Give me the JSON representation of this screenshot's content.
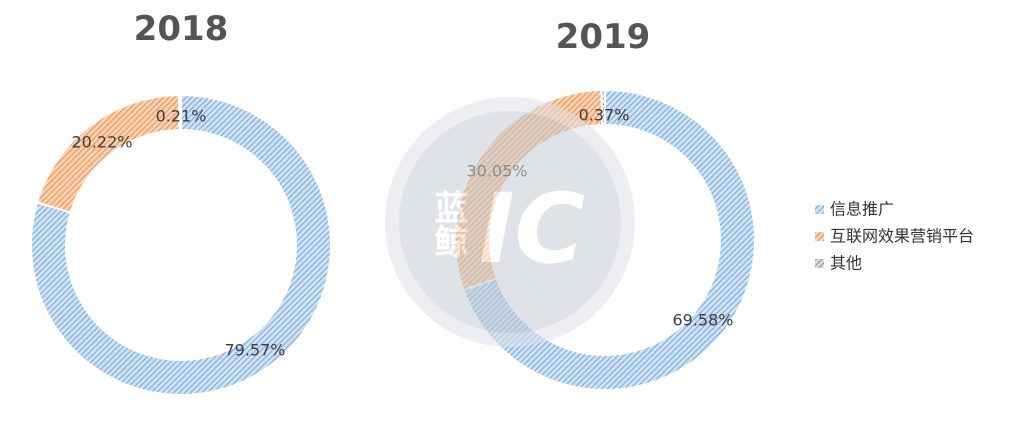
{
  "chart_data": [
    {
      "type": "pie",
      "variant": "donut",
      "title": "2018",
      "categories": [
        "信息推广",
        "互联网效果营销平台",
        "其他"
      ],
      "values": [
        79.57,
        20.22,
        0.21
      ],
      "labels": [
        "79.57%",
        "20.22%",
        "0.21%"
      ]
    },
    {
      "type": "pie",
      "variant": "donut",
      "title": "2019",
      "categories": [
        "信息推广",
        "互联网效果营销平台",
        "其他"
      ],
      "values": [
        69.58,
        30.05,
        0.37
      ],
      "labels": [
        "69.58%",
        "30.05%",
        "0.37%"
      ]
    }
  ],
  "legend": {
    "placement": "right",
    "items": [
      {
        "label": "信息推广",
        "color": "#9dc3e6"
      },
      {
        "label": "互联网效果营销平台",
        "color": "#f4b183"
      },
      {
        "label": "其他",
        "color": "#a6a6a6"
      }
    ]
  },
  "watermark": {
    "text": "蓝鲸",
    "mark": "IC"
  },
  "colors": {
    "series": [
      "#9dc3e6",
      "#f4b183",
      "#a6a6a6"
    ],
    "hatch_blue": "#5b9bd5",
    "hatch_orange": "#ed7d31",
    "hatch_gray": "#7f7f7f"
  }
}
